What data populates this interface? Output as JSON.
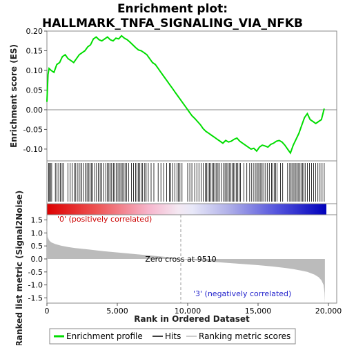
{
  "title_line1": "Enrichment plot:",
  "title_line2": "HALLMARK_TNFA_SIGNALING_VIA_NFKB",
  "chart_data": [
    {
      "type": "line",
      "name": "enrichment-profile-panel",
      "ylabel": "Enrichment score (ES)",
      "ylim": [
        -0.13,
        0.2
      ],
      "yticks": [
        {
          "v": 0.2,
          "label": "0.20"
        },
        {
          "v": 0.15,
          "label": "0.15"
        },
        {
          "v": 0.1,
          "label": "0.10"
        },
        {
          "v": 0.05,
          "label": "0.05"
        },
        {
          "v": 0.0,
          "label": "0.00"
        },
        {
          "v": -0.05,
          "label": "-0.05"
        },
        {
          "v": -0.1,
          "label": "-0.10"
        }
      ],
      "xlim": [
        0,
        20000
      ],
      "series": [
        {
          "name": "Enrichment profile",
          "color": "#00dd00",
          "x": [
            0,
            80,
            150,
            300,
            500,
            700,
            900,
            1100,
            1300,
            1500,
            1700,
            1900,
            2100,
            2300,
            2500,
            2700,
            2900,
            3100,
            3300,
            3500,
            3700,
            3900,
            4100,
            4300,
            4500,
            4700,
            4900,
            5100,
            5300,
            5500,
            5700,
            5900,
            6100,
            6300,
            6500,
            6700,
            6900,
            7100,
            7300,
            7500,
            7700,
            7900,
            8100,
            8300,
            8500,
            8700,
            8900,
            9100,
            9300,
            9500,
            9700,
            9900,
            10100,
            10300,
            10500,
            10700,
            10900,
            11100,
            11300,
            11500,
            11700,
            11900,
            12100,
            12300,
            12500,
            12700,
            12900,
            13100,
            13300,
            13500,
            13700,
            13900,
            14100,
            14300,
            14500,
            14700,
            14900,
            15100,
            15300,
            15500,
            15700,
            15900,
            16100,
            16300,
            16500,
            16700,
            16900,
            17100,
            17300,
            17500,
            17700,
            17900,
            18100,
            18300,
            18500,
            18700,
            18900,
            19100,
            19300,
            19500,
            19700
          ],
          "y": [
            0.02,
            0.09,
            0.105,
            0.1,
            0.095,
            0.115,
            0.12,
            0.135,
            0.14,
            0.13,
            0.125,
            0.12,
            0.13,
            0.14,
            0.145,
            0.15,
            0.16,
            0.165,
            0.18,
            0.185,
            0.178,
            0.175,
            0.18,
            0.185,
            0.178,
            0.175,
            0.182,
            0.18,
            0.188,
            0.182,
            0.178,
            0.172,
            0.165,
            0.158,
            0.152,
            0.15,
            0.145,
            0.14,
            0.13,
            0.12,
            0.115,
            0.105,
            0.095,
            0.085,
            0.075,
            0.065,
            0.055,
            0.045,
            0.035,
            0.025,
            0.015,
            0.005,
            -0.005,
            -0.015,
            -0.022,
            -0.03,
            -0.038,
            -0.048,
            -0.055,
            -0.06,
            -0.065,
            -0.07,
            -0.075,
            -0.08,
            -0.085,
            -0.078,
            -0.082,
            -0.08,
            -0.075,
            -0.072,
            -0.08,
            -0.085,
            -0.09,
            -0.095,
            -0.1,
            -0.098,
            -0.105,
            -0.095,
            -0.09,
            -0.092,
            -0.095,
            -0.088,
            -0.085,
            -0.08,
            -0.078,
            -0.082,
            -0.09,
            -0.1,
            -0.11,
            -0.09,
            -0.075,
            -0.06,
            -0.04,
            -0.02,
            -0.01,
            -0.025,
            -0.03,
            -0.035,
            -0.03,
            -0.025,
            0.003
          ]
        }
      ],
      "hits": [
        120,
        180,
        260,
        340,
        600,
        720,
        840,
        950,
        1080,
        1200,
        1500,
        1650,
        1800,
        1950,
        2050,
        2200,
        2350,
        2480,
        2600,
        2720,
        2850,
        2950,
        3050,
        3150,
        3250,
        3400,
        3520,
        3650,
        3780,
        3900,
        4050,
        4180,
        4300,
        4400,
        4500,
        4600,
        4720,
        4820,
        4920,
        5050,
        5150,
        5250,
        5350,
        5450,
        5550,
        5650,
        5800,
        6000,
        6150,
        6300,
        6400,
        6500,
        6600,
        6700,
        6800,
        6950,
        7050,
        7200,
        7400,
        7600,
        7900,
        8100,
        8300,
        8500,
        8700,
        8800,
        8950,
        9100,
        9250,
        9350,
        9450,
        9600,
        10000,
        10150,
        10300,
        10500,
        10650,
        10800,
        10950,
        11100,
        11250,
        11350,
        11450,
        11550,
        11650,
        11750,
        11850,
        11950,
        12050,
        12150,
        12250,
        12400,
        12550,
        12650,
        12750,
        12850,
        12950,
        13050,
        13150,
        13250,
        13350,
        13450,
        13550,
        13650,
        13750,
        14000,
        14200,
        14400,
        14550,
        14700,
        14850,
        14950,
        15050,
        15150,
        15250,
        15350,
        15500,
        15650,
        15800,
        15950,
        16050,
        16150,
        16250,
        16350,
        16600,
        16750,
        17100,
        17250,
        17350,
        17450,
        17550,
        17650,
        17750,
        17850,
        17950,
        18050,
        18150,
        18250,
        18350,
        18500,
        18650,
        18800,
        18950,
        19100,
        19250,
        19400,
        19550,
        19700
      ]
    },
    {
      "type": "area",
      "name": "ranked-list-panel",
      "ylabel": "Ranked list metric (Signal2Noise)",
      "xlabel": "Rank in Ordered Dataset",
      "ylim": [
        -1.7,
        1.7
      ],
      "yticks": [
        {
          "v": 1.5,
          "label": "1.5"
        },
        {
          "v": 1.0,
          "label": "1.0"
        },
        {
          "v": 0.5,
          "label": "0.5"
        },
        {
          "v": 0.0,
          "label": "0.0"
        },
        {
          "v": -0.5,
          "label": "-0.5"
        },
        {
          "v": -1.0,
          "label": "-1.0"
        },
        {
          "v": -1.5,
          "label": "-1.5"
        }
      ],
      "xticks": [
        {
          "v": 0,
          "label": "0"
        },
        {
          "v": 5000,
          "label": "5,000"
        },
        {
          "v": 10000,
          "label": "10,000"
        },
        {
          "v": 15000,
          "label": "15,000"
        },
        {
          "v": 20000,
          "label": "20,000"
        }
      ],
      "xlim": [
        0,
        20000
      ],
      "series": [
        {
          "name": "Ranking metric scores",
          "color": "#bbbbbb",
          "x": [
            0,
            50,
            150,
            300,
            600,
            1000,
            1500,
            2000,
            3000,
            4000,
            5000,
            6000,
            7000,
            8000,
            9000,
            9510,
            10000,
            11000,
            12000,
            13000,
            14000,
            15000,
            16000,
            17000,
            17500,
            18000,
            18500,
            19000,
            19300,
            19500,
            19650,
            19720,
            19750
          ],
          "y": [
            1.55,
            0.85,
            0.72,
            0.64,
            0.57,
            0.51,
            0.46,
            0.42,
            0.36,
            0.3,
            0.25,
            0.2,
            0.15,
            0.1,
            0.05,
            0.0,
            -0.03,
            -0.08,
            -0.12,
            -0.16,
            -0.2,
            -0.24,
            -0.29,
            -0.35,
            -0.39,
            -0.44,
            -0.5,
            -0.6,
            -0.7,
            -0.82,
            -1.0,
            -1.3,
            -1.7
          ]
        }
      ],
      "annotations": {
        "positive_label": "'0' (positively correlated)",
        "negative_label": "'3' (negatively correlated)",
        "zero_cross_label": "Zero cross at 9510",
        "zero_cross_x": 9510
      }
    }
  ],
  "legend": {
    "items": [
      {
        "label": "Enrichment profile",
        "color": "#00dd00"
      },
      {
        "label": "Hits",
        "color": "#000000"
      },
      {
        "label": "Ranking metric scores",
        "color": "#bbbbbb"
      }
    ]
  },
  "colors": {
    "enrichment_line": "#00dd00",
    "positive_heat": "#dd0000",
    "negative_heat": "#0000cc",
    "metric_fill": "#bbbbbb",
    "positive_label": "#cc0000",
    "negative_label": "#2222cc"
  }
}
